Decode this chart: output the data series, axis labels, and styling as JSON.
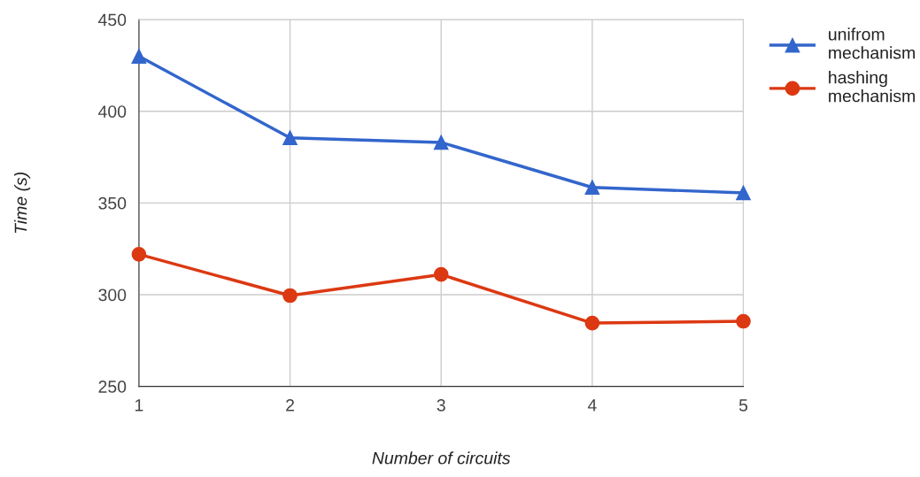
{
  "chart_data": {
    "type": "line",
    "xlabel": "Number of circuits",
    "ylabel": "Time (s)",
    "x": [
      1,
      2,
      3,
      4,
      5
    ],
    "series": [
      {
        "name": "unifrom mechanism",
        "color": "#3366cc",
        "marker": "triangle",
        "values": [
          430,
          385.5,
          383,
          358.5,
          355.5
        ]
      },
      {
        "name": "hashing mechanism",
        "color": "#dc3912",
        "marker": "circle",
        "values": [
          322,
          299.5,
          311,
          284.5,
          285.5
        ]
      }
    ],
    "xlim": [
      1,
      5
    ],
    "xticks": [
      1,
      2,
      3,
      4,
      5
    ],
    "ylim": [
      250,
      450
    ],
    "yticks": [
      250,
      300,
      350,
      400,
      450
    ],
    "grid": true,
    "legend": "top right",
    "line_style": "solid"
  }
}
